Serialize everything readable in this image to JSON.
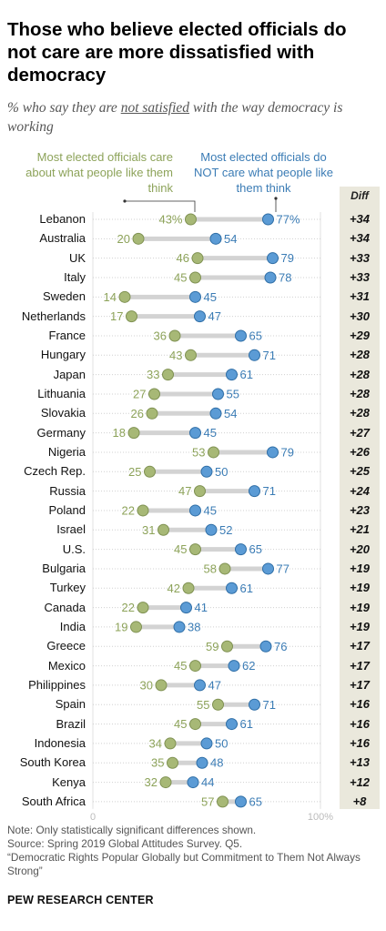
{
  "title": "Those who believe elected officials do not care are more dissatisfied with democracy",
  "subtitle_pre": "% who say they are ",
  "subtitle_underline": "not satisfied",
  "subtitle_post": " with the way democracy is working",
  "legend": {
    "care": "Most elected officials care about what people like them think",
    "not_care": "Most elected officials do NOT care what people like them think",
    "diff": "Diff"
  },
  "colors": {
    "care": "#a7b876",
    "care_text": "#8da35a",
    "not_care": "#5b9bd5",
    "not_care_text": "#3b7cb5",
    "diff_bg": "#eae8dc"
  },
  "notes": {
    "note": "Note: Only statistically significant differences shown.",
    "source": "Source: Spring 2019 Global Attitudes Survey. Q5.",
    "report": "“Democratic Rights Popular Globally but Commitment to Them Not Always Strong”"
  },
  "brand": "PEW RESEARCH CENTER",
  "chart_data": {
    "type": "dot",
    "xlim": [
      0,
      100
    ],
    "tick_labels": [
      "0",
      "100%"
    ],
    "series_names": [
      "Most elected officials care about what people like them think",
      "Most elected officials do NOT care what people like them think"
    ],
    "categories": [
      "Lebanon",
      "Australia",
      "UK",
      "Italy",
      "Sweden",
      "Netherlands",
      "France",
      "Hungary",
      "Japan",
      "Lithuania",
      "Slovakia",
      "Germany",
      "Nigeria",
      "Czech Rep.",
      "Russia",
      "Poland",
      "Israel",
      "U.S.",
      "Bulgaria",
      "Turkey",
      "Canada",
      "India",
      "Greece",
      "Mexico",
      "Philippines",
      "Spain",
      "Brazil",
      "Indonesia",
      "South Korea",
      "Kenya",
      "South Africa"
    ],
    "care": [
      43,
      20,
      46,
      45,
      14,
      17,
      36,
      43,
      33,
      27,
      26,
      18,
      53,
      25,
      47,
      22,
      31,
      45,
      58,
      42,
      22,
      19,
      59,
      45,
      30,
      55,
      45,
      34,
      35,
      32,
      57
    ],
    "not_care": [
      77,
      54,
      79,
      78,
      45,
      47,
      65,
      71,
      61,
      55,
      54,
      45,
      79,
      50,
      71,
      45,
      52,
      65,
      77,
      61,
      41,
      38,
      76,
      62,
      47,
      71,
      61,
      50,
      48,
      44,
      65
    ],
    "diff": [
      "+34",
      "+34",
      "+33",
      "+33",
      "+31",
      "+30",
      "+29",
      "+28",
      "+28",
      "+28",
      "+28",
      "+27",
      "+26",
      "+25",
      "+24",
      "+23",
      "+21",
      "+20",
      "+19",
      "+19",
      "+19",
      "+19",
      "+17",
      "+17",
      "+17",
      "+16",
      "+16",
      "+16",
      "+13",
      "+12",
      "+8"
    ],
    "first_row_suffix": "%"
  }
}
